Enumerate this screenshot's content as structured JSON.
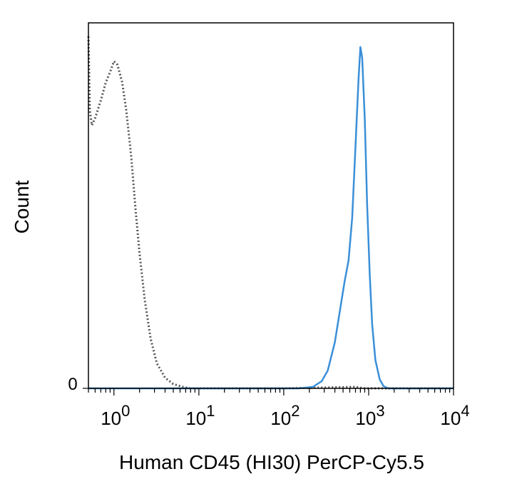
{
  "chart_data": {
    "type": "line",
    "title": "",
    "xlabel": "Human CD45 (HI30) PerCP-Cy5.5",
    "ylabel": "Count",
    "x_scale": "log",
    "xlim": [
      0.5,
      10000
    ],
    "ylim": [
      0,
      1.0
    ],
    "grid": false,
    "legend": "none",
    "x_ticks": [
      {
        "base": "10",
        "exp": "0",
        "value": 1
      },
      {
        "base": "10",
        "exp": "1",
        "value": 10
      },
      {
        "base": "10",
        "exp": "2",
        "value": 100
      },
      {
        "base": "10",
        "exp": "3",
        "value": 1000
      },
      {
        "base": "10",
        "exp": "4",
        "value": 10000
      }
    ],
    "y_ticks": [
      {
        "label": "0",
        "value": 0
      }
    ],
    "series": [
      {
        "style": "dotted",
        "color": "#555555",
        "points": [
          [
            0.5,
            0.99
          ],
          [
            0.52,
            0.78
          ],
          [
            0.55,
            0.74
          ],
          [
            0.6,
            0.76
          ],
          [
            0.7,
            0.81
          ],
          [
            0.8,
            0.86
          ],
          [
            0.9,
            0.89
          ],
          [
            1.0,
            0.92
          ],
          [
            1.1,
            0.91
          ],
          [
            1.25,
            0.86
          ],
          [
            1.4,
            0.78
          ],
          [
            1.6,
            0.65
          ],
          [
            1.8,
            0.5
          ],
          [
            2.0,
            0.38
          ],
          [
            2.3,
            0.25
          ],
          [
            2.7,
            0.14
          ],
          [
            3.2,
            0.07
          ],
          [
            4.0,
            0.03
          ],
          [
            5.0,
            0.012
          ],
          [
            6.5,
            0.004
          ],
          [
            8.0,
            0.0
          ],
          [
            20,
            0.0
          ],
          [
            100,
            0.0
          ],
          [
            700,
            0.004
          ],
          [
            900,
            0.0
          ],
          [
            10000,
            0.0
          ]
        ]
      },
      {
        "style": "solid",
        "color": "#3a8fd8",
        "points": [
          [
            0.5,
            0.0
          ],
          [
            150,
            0.0
          ],
          [
            220,
            0.004
          ],
          [
            280,
            0.02
          ],
          [
            330,
            0.05
          ],
          [
            400,
            0.13
          ],
          [
            460,
            0.22
          ],
          [
            520,
            0.3
          ],
          [
            580,
            0.36
          ],
          [
            640,
            0.48
          ],
          [
            700,
            0.68
          ],
          [
            760,
            0.87
          ],
          [
            800,
            0.96
          ],
          [
            840,
            0.93
          ],
          [
            900,
            0.76
          ],
          [
            960,
            0.52
          ],
          [
            1030,
            0.32
          ],
          [
            1100,
            0.18
          ],
          [
            1200,
            0.08
          ],
          [
            1350,
            0.025
          ],
          [
            1500,
            0.006
          ],
          [
            1700,
            0.0
          ],
          [
            10000,
            0.0
          ]
        ]
      }
    ]
  }
}
